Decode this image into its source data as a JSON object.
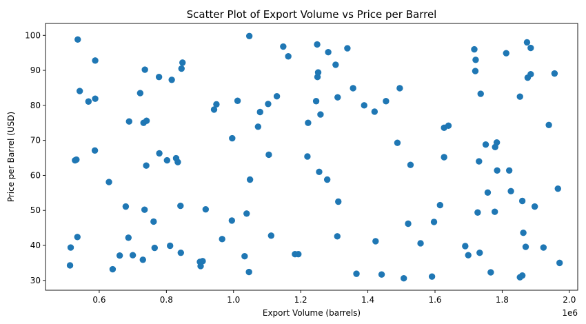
{
  "chart_data": {
    "type": "scatter",
    "title": "Scatter Plot of Export Volume vs Price per Barrel",
    "xlabel": "Export Volume (barrels)",
    "ylabel": "Price per Barrel (USD)",
    "x_offset_label": "1e6",
    "xlim": [
      0.44,
      2.025
    ],
    "ylim": [
      27.2,
      103.4
    ],
    "x_ticks": [
      0.6,
      0.8,
      1.0,
      1.2,
      1.4,
      1.6,
      1.8,
      2.0
    ],
    "x_tick_labels": [
      "0.6",
      "0.8",
      "1.0",
      "1.2",
      "1.4",
      "1.6",
      "1.8",
      "2.0"
    ],
    "y_ticks": [
      30,
      40,
      50,
      60,
      70,
      80,
      90,
      100
    ],
    "y_tick_labels": [
      "30",
      "40",
      "50",
      "60",
      "70",
      "80",
      "90",
      "100"
    ],
    "grid": false,
    "marker_color": "#1f77b4",
    "points": [
      {
        "x": 0.536,
        "y": 98.8
      },
      {
        "x": 1.047,
        "y": 99.8
      },
      {
        "x": 0.542,
        "y": 84.1
      },
      {
        "x": 0.588,
        "y": 92.8
      },
      {
        "x": 0.568,
        "y": 81.1
      },
      {
        "x": 0.588,
        "y": 81.9
      },
      {
        "x": 0.736,
        "y": 90.2
      },
      {
        "x": 0.722,
        "y": 83.5
      },
      {
        "x": 0.848,
        "y": 92.2
      },
      {
        "x": 0.845,
        "y": 90.5
      },
      {
        "x": 0.778,
        "y": 88.1
      },
      {
        "x": 0.816,
        "y": 87.3
      },
      {
        "x": 0.689,
        "y": 75.4
      },
      {
        "x": 0.732,
        "y": 75.0
      },
      {
        "x": 0.741,
        "y": 75.6
      },
      {
        "x": 0.587,
        "y": 67.1
      },
      {
        "x": 0.528,
        "y": 64.3
      },
      {
        "x": 0.532,
        "y": 64.5
      },
      {
        "x": 0.779,
        "y": 66.3
      },
      {
        "x": 0.802,
        "y": 64.3
      },
      {
        "x": 0.829,
        "y": 64.9
      },
      {
        "x": 0.834,
        "y": 63.8
      },
      {
        "x": 0.74,
        "y": 62.8
      },
      {
        "x": 0.629,
        "y": 58.1
      },
      {
        "x": 0.842,
        "y": 51.3
      },
      {
        "x": 0.679,
        "y": 51.1
      },
      {
        "x": 0.735,
        "y": 50.2
      },
      {
        "x": 0.917,
        "y": 50.3
      },
      {
        "x": 0.762,
        "y": 46.8
      },
      {
        "x": 0.535,
        "y": 42.4
      },
      {
        "x": 0.515,
        "y": 39.4
      },
      {
        "x": 0.687,
        "y": 42.2
      },
      {
        "x": 0.811,
        "y": 39.9
      },
      {
        "x": 0.765,
        "y": 39.3
      },
      {
        "x": 0.661,
        "y": 37.1
      },
      {
        "x": 0.7,
        "y": 37.2
      },
      {
        "x": 0.73,
        "y": 35.9
      },
      {
        "x": 0.843,
        "y": 37.9
      },
      {
        "x": 0.513,
        "y": 34.3
      },
      {
        "x": 0.64,
        "y": 33.2
      },
      {
        "x": 0.9,
        "y": 35.3
      },
      {
        "x": 0.908,
        "y": 35.5
      },
      {
        "x": 0.902,
        "y": 34.1
      },
      {
        "x": 0.942,
        "y": 78.8
      },
      {
        "x": 0.949,
        "y": 80.3
      },
      {
        "x": 1.012,
        "y": 81.3
      },
      {
        "x": 1.103,
        "y": 80.4
      },
      {
        "x": 1.129,
        "y": 82.6
      },
      {
        "x": 1.148,
        "y": 96.8
      },
      {
        "x": 1.163,
        "y": 94.0
      },
      {
        "x": 1.079,
        "y": 78.1
      },
      {
        "x": 1.073,
        "y": 73.9
      },
      {
        "x": 0.996,
        "y": 70.6
      },
      {
        "x": 1.105,
        "y": 65.9
      },
      {
        "x": 1.049,
        "y": 58.8
      },
      {
        "x": 0.995,
        "y": 47.1
      },
      {
        "x": 1.039,
        "y": 49.1
      },
      {
        "x": 0.966,
        "y": 41.8
      },
      {
        "x": 1.112,
        "y": 42.8
      },
      {
        "x": 1.033,
        "y": 36.9
      },
      {
        "x": 1.046,
        "y": 32.4
      },
      {
        "x": 1.183,
        "y": 37.5
      },
      {
        "x": 1.193,
        "y": 37.5
      },
      {
        "x": 1.249,
        "y": 97.4
      },
      {
        "x": 1.282,
        "y": 95.2
      },
      {
        "x": 1.339,
        "y": 96.3
      },
      {
        "x": 1.304,
        "y": 91.6
      },
      {
        "x": 1.252,
        "y": 89.4
      },
      {
        "x": 1.25,
        "y": 88.1
      },
      {
        "x": 1.246,
        "y": 81.2
      },
      {
        "x": 1.31,
        "y": 82.3
      },
      {
        "x": 1.259,
        "y": 77.4
      },
      {
        "x": 1.222,
        "y": 75.0
      },
      {
        "x": 1.356,
        "y": 84.9
      },
      {
        "x": 1.389,
        "y": 80.0
      },
      {
        "x": 1.42,
        "y": 78.2
      },
      {
        "x": 1.454,
        "y": 81.2
      },
      {
        "x": 1.495,
        "y": 84.9
      },
      {
        "x": 1.22,
        "y": 65.4
      },
      {
        "x": 1.255,
        "y": 61.0
      },
      {
        "x": 1.279,
        "y": 58.8
      },
      {
        "x": 1.488,
        "y": 69.3
      },
      {
        "x": 1.527,
        "y": 63.0
      },
      {
        "x": 1.312,
        "y": 52.5
      },
      {
        "x": 1.309,
        "y": 42.6
      },
      {
        "x": 1.423,
        "y": 41.2
      },
      {
        "x": 1.52,
        "y": 46.2
      },
      {
        "x": 1.366,
        "y": 31.9
      },
      {
        "x": 1.441,
        "y": 31.7
      },
      {
        "x": 1.507,
        "y": 30.6
      },
      {
        "x": 1.557,
        "y": 40.6
      },
      {
        "x": 1.591,
        "y": 31.1
      },
      {
        "x": 1.597,
        "y": 46.7
      },
      {
        "x": 1.615,
        "y": 51.5
      },
      {
        "x": 1.627,
        "y": 65.2
      },
      {
        "x": 1.627,
        "y": 73.6
      },
      {
        "x": 1.64,
        "y": 74.2
      },
      {
        "x": 1.69,
        "y": 39.8
      },
      {
        "x": 1.699,
        "y": 37.2
      },
      {
        "x": 1.717,
        "y": 96.0
      },
      {
        "x": 1.721,
        "y": 93.0
      },
      {
        "x": 1.72,
        "y": 89.8
      },
      {
        "x": 1.736,
        "y": 83.3
      },
      {
        "x": 1.812,
        "y": 94.9
      },
      {
        "x": 1.874,
        "y": 98.0
      },
      {
        "x": 1.885,
        "y": 96.4
      },
      {
        "x": 1.885,
        "y": 88.9
      },
      {
        "x": 1.876,
        "y": 87.9
      },
      {
        "x": 1.853,
        "y": 82.5
      },
      {
        "x": 1.956,
        "y": 89.1
      },
      {
        "x": 1.939,
        "y": 74.4
      },
      {
        "x": 1.751,
        "y": 68.8
      },
      {
        "x": 1.779,
        "y": 68.1
      },
      {
        "x": 1.784,
        "y": 69.4
      },
      {
        "x": 1.731,
        "y": 64.0
      },
      {
        "x": 1.785,
        "y": 61.4
      },
      {
        "x": 1.821,
        "y": 61.4
      },
      {
        "x": 1.757,
        "y": 55.1
      },
      {
        "x": 1.826,
        "y": 55.5
      },
      {
        "x": 1.966,
        "y": 56.2
      },
      {
        "x": 1.727,
        "y": 49.4
      },
      {
        "x": 1.778,
        "y": 49.6
      },
      {
        "x": 1.86,
        "y": 52.7
      },
      {
        "x": 1.897,
        "y": 51.1
      },
      {
        "x": 1.863,
        "y": 43.6
      },
      {
        "x": 1.87,
        "y": 39.6
      },
      {
        "x": 1.923,
        "y": 39.4
      },
      {
        "x": 1.733,
        "y": 37.9
      },
      {
        "x": 1.766,
        "y": 32.3
      },
      {
        "x": 1.853,
        "y": 30.9
      },
      {
        "x": 1.86,
        "y": 31.4
      },
      {
        "x": 1.971,
        "y": 35.0
      }
    ]
  }
}
